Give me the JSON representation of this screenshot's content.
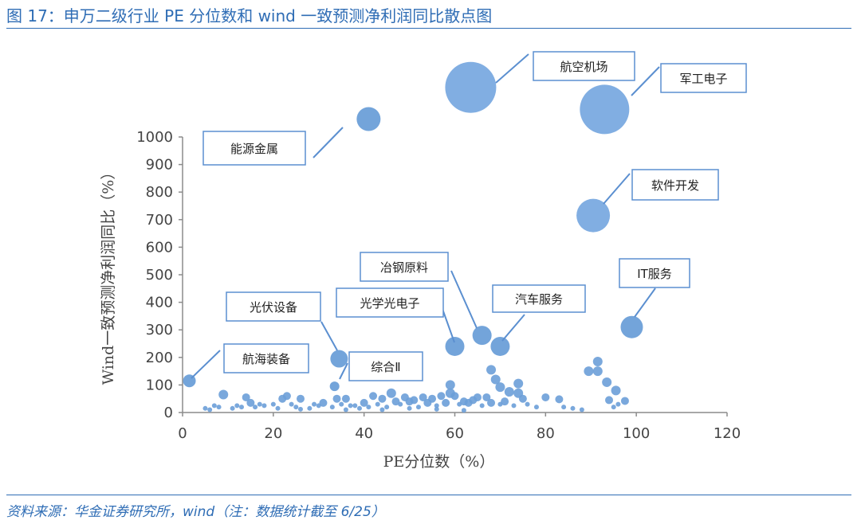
{
  "header": {
    "title": "图 17：申万二级行业 PE 分位数和 wind 一致预测净利润同比散点图"
  },
  "footer": {
    "source": "资料来源：华金证券研究所，wind（注：数据统计截至 6/25）"
  },
  "colors": {
    "accent": "#2f6db5",
    "bubble": "#6b9fd8",
    "bubble_big": "#7aaae0",
    "callout_border": "#5b8fd0"
  },
  "chart_data": {
    "type": "scatter",
    "title": "",
    "xlabel": "PE分位数（%）",
    "ylabel": "Wind一致预测净利润同比（%）",
    "xlim": [
      0,
      120
    ],
    "ylim": [
      0,
      1000
    ],
    "x_ticks": [
      0,
      20,
      40,
      60,
      80,
      100,
      120
    ],
    "y_ticks": [
      0,
      100,
      200,
      300,
      400,
      500,
      600,
      700,
      800,
      900,
      1000
    ],
    "grid": false,
    "legend": "none",
    "labeled_points": [
      {
        "label": "航空机场",
        "x": 63.5,
        "y": 1180,
        "r": 32
      },
      {
        "label": "军工电子",
        "x": 93,
        "y": 1100,
        "r": 31
      },
      {
        "label": "能源金属",
        "x": 41,
        "y": 1065,
        "r": 15
      },
      {
        "label": "软件开发",
        "x": 90.5,
        "y": 715,
        "r": 21
      },
      {
        "label": "冶钢原料",
        "x": 66,
        "y": 280,
        "r": 12
      },
      {
        "label": "光学光电子",
        "x": 60,
        "y": 240,
        "r": 12
      },
      {
        "label": "汽车服务",
        "x": 70,
        "y": 240,
        "r": 12
      },
      {
        "label": "IT服务",
        "x": 99,
        "y": 310,
        "r": 14
      },
      {
        "label": "光伏设备",
        "x": 34.5,
        "y": 195,
        "r": 11
      },
      {
        "label": "航海装备",
        "x": 1.5,
        "y": 115,
        "r": 8
      },
      {
        "label": "综合Ⅱ",
        "x": 33.5,
        "y": 95,
        "r": 6
      }
    ],
    "points": [
      [
        91.5,
        185
      ],
      [
        89.5,
        150
      ],
      [
        91.5,
        150
      ],
      [
        93.5,
        110
      ],
      [
        95.5,
        80
      ],
      [
        97.5,
        42
      ],
      [
        94,
        45
      ],
      [
        68,
        155
      ],
      [
        69,
        120
      ],
      [
        70,
        92
      ],
      [
        72,
        75
      ],
      [
        74,
        70
      ],
      [
        74,
        105
      ],
      [
        67,
        55
      ],
      [
        68,
        35
      ],
      [
        70,
        30
      ],
      [
        73,
        25
      ],
      [
        59,
        100
      ],
      [
        59,
        70
      ],
      [
        60,
        60
      ],
      [
        57,
        60
      ],
      [
        55,
        50
      ],
      [
        53,
        55
      ],
      [
        51,
        45
      ],
      [
        49,
        55
      ],
      [
        47,
        40
      ],
      [
        46,
        70
      ],
      [
        44,
        50
      ],
      [
        42,
        60
      ],
      [
        40,
        35
      ],
      [
        38,
        25
      ],
      [
        36,
        50
      ],
      [
        34,
        50
      ],
      [
        31,
        35
      ],
      [
        29,
        30
      ],
      [
        26,
        50
      ],
      [
        23,
        60
      ],
      [
        22,
        50
      ],
      [
        20,
        30
      ],
      [
        17,
        30
      ],
      [
        14,
        55
      ],
      [
        12,
        25
      ],
      [
        9,
        65
      ],
      [
        7,
        25
      ],
      [
        5,
        15
      ],
      [
        64,
        45
      ],
      [
        65,
        55
      ],
      [
        63,
        35
      ],
      [
        62,
        40
      ],
      [
        61,
        30
      ],
      [
        58,
        35
      ],
      [
        56,
        25
      ],
      [
        54,
        35
      ],
      [
        52,
        20
      ],
      [
        50,
        40
      ],
      [
        48,
        30
      ],
      [
        45,
        20
      ],
      [
        43,
        30
      ],
      [
        41,
        20
      ],
      [
        39,
        15
      ],
      [
        37,
        25
      ],
      [
        35,
        30
      ],
      [
        33,
        20
      ],
      [
        30,
        25
      ],
      [
        28,
        15
      ],
      [
        25,
        20
      ],
      [
        24,
        30
      ],
      [
        21,
        15
      ],
      [
        18,
        25
      ],
      [
        16,
        20
      ],
      [
        15,
        35
      ],
      [
        13,
        20
      ],
      [
        11,
        15
      ],
      [
        8,
        20
      ],
      [
        6,
        10
      ],
      [
        76,
        30
      ],
      [
        78,
        20
      ],
      [
        80,
        55
      ],
      [
        83,
        48
      ],
      [
        84,
        20
      ],
      [
        86,
        15
      ],
      [
        88,
        10
      ],
      [
        71,
        40
      ],
      [
        75,
        50
      ],
      [
        66,
        25
      ],
      [
        44,
        10
      ],
      [
        50,
        15
      ],
      [
        56,
        12
      ],
      [
        62,
        8
      ],
      [
        36,
        10
      ],
      [
        26,
        12
      ],
      [
        96,
        30
      ],
      [
        95,
        20
      ]
    ]
  }
}
